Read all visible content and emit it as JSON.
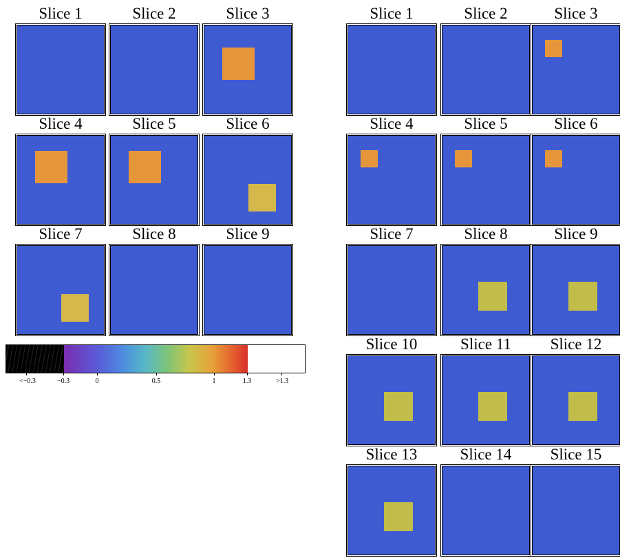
{
  "colors": {
    "background_value": "#3f5bd1",
    "orange": "#e6963a",
    "mustard": "#d6b84a",
    "olive": "#c2bc4a"
  },
  "left_panel": {
    "slices": [
      {
        "title": "Slice 1",
        "patch": null
      },
      {
        "title": "Slice 2",
        "patch": null
      },
      {
        "title": "Slice 3",
        "patch": "orange"
      },
      {
        "title": "Slice 4",
        "patch": "orange"
      },
      {
        "title": "Slice 5",
        "patch": "orange"
      },
      {
        "title": "Slice 6",
        "patch": "mustard"
      },
      {
        "title": "Slice 7",
        "patch": "mustard"
      },
      {
        "title": "Slice 8",
        "patch": null
      },
      {
        "title": "Slice 9",
        "patch": null
      }
    ]
  },
  "right_panel": {
    "slices": [
      {
        "title": "Slice 1",
        "patch": null
      },
      {
        "title": "Slice 2",
        "patch": null
      },
      {
        "title": "Slice 3",
        "patch": "orange"
      },
      {
        "title": "Slice 4",
        "patch": "orange"
      },
      {
        "title": "Slice 5",
        "patch": "orange"
      },
      {
        "title": "Slice 6",
        "patch": "orange"
      },
      {
        "title": "Slice 7",
        "patch": null
      },
      {
        "title": "Slice 8",
        "patch": "olive"
      },
      {
        "title": "Slice 9",
        "patch": "olive"
      },
      {
        "title": "Slice 10",
        "patch": "olive"
      },
      {
        "title": "Slice 11",
        "patch": "olive"
      },
      {
        "title": "Slice 12",
        "patch": "olive"
      },
      {
        "title": "Slice 13",
        "patch": "olive"
      },
      {
        "title": "Slice 14",
        "patch": null
      },
      {
        "title": "Slice 15",
        "patch": null
      }
    ]
  },
  "colorbar": {
    "ticks": [
      "<−0.3",
      "−0.3",
      "0",
      "0.5",
      "1",
      "1.3",
      ">1.3"
    ],
    "under_color": "#000000",
    "over_color": "#ffffff"
  }
}
